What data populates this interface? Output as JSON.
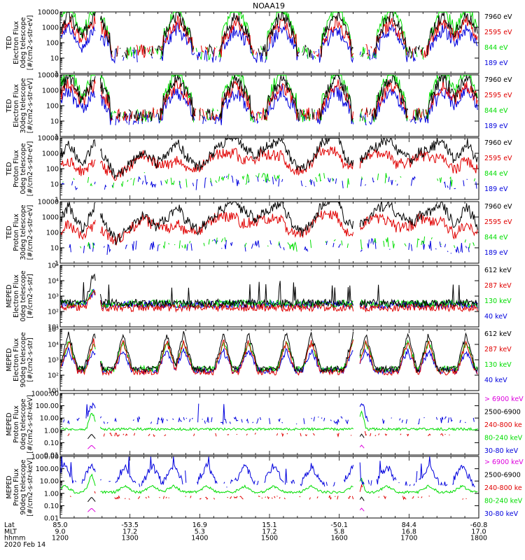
{
  "title": "NOAA19",
  "colors": {
    "black": "#000000",
    "red": "#e00000",
    "green": "#00dd00",
    "blue": "#0000dd",
    "magenta": "#dd00dd"
  },
  "chart_data": [
    {
      "type": "line",
      "id": "ted-e-0",
      "ylabel": [
        "TED",
        "Electron Flux",
        "0deg telescope",
        "[#/cm2-s-str-eV]"
      ],
      "yticks": [
        "10000",
        "1000",
        "100",
        "10",
        "1"
      ],
      "ylog": [
        1,
        10000
      ],
      "legend": [
        {
          "label": "7960 eV",
          "color": "black"
        },
        {
          "label": "2595 eV",
          "color": "red"
        },
        {
          "label": "844 eV",
          "color": "green"
        },
        {
          "label": "189 eV",
          "color": "blue"
        }
      ],
      "profile": "ted_e0"
    },
    {
      "type": "line",
      "id": "ted-e-30",
      "ylabel": [
        "TED",
        "Electron Flux",
        "30deg telescope",
        "[#/cm2-s-str-eV]"
      ],
      "yticks": [
        "10000",
        "1000",
        "100",
        "10",
        "1"
      ],
      "ylog": [
        1,
        10000
      ],
      "legend": [
        {
          "label": "7960 eV",
          "color": "black"
        },
        {
          "label": "2595 eV",
          "color": "red"
        },
        {
          "label": "844 eV",
          "color": "green"
        },
        {
          "label": "189 eV",
          "color": "blue"
        }
      ],
      "profile": "ted_e30"
    },
    {
      "type": "line",
      "id": "ted-p-0",
      "ylabel": [
        "TED",
        "Proton Flux",
        "0deg telescope",
        "[#/cm2-s-str-eV]"
      ],
      "yticks": [
        "10000",
        "1000",
        "100",
        "10",
        "1"
      ],
      "ylog": [
        1,
        10000
      ],
      "legend": [
        {
          "label": "7960 eV",
          "color": "black"
        },
        {
          "label": "2595 eV",
          "color": "red"
        },
        {
          "label": "844 eV",
          "color": "green"
        },
        {
          "label": "189 eV",
          "color": "blue"
        }
      ],
      "profile": "ted_p0"
    },
    {
      "type": "line",
      "id": "ted-p-30",
      "ylabel": [
        "TED",
        "Proton Flux",
        "30deg telescope",
        "[#/cm2-s-str-eV]"
      ],
      "yticks": [
        "10000",
        "1000",
        "100",
        "10",
        "1"
      ],
      "ylog": [
        1,
        10000
      ],
      "legend": [
        {
          "label": "7960 eV",
          "color": "black"
        },
        {
          "label": "2595 eV",
          "color": "red"
        },
        {
          "label": "844 eV",
          "color": "green"
        },
        {
          "label": "189 eV",
          "color": "blue"
        }
      ],
      "profile": "ted_p30"
    },
    {
      "type": "line",
      "id": "meped-e-0",
      "ylabel": [
        "MEPED",
        "Electron Flux",
        "0deg telescope",
        "[#/cm2-s-str]"
      ],
      "yticks": [
        "10⁵",
        "10⁴",
        "10³",
        "10²",
        "10¹"
      ],
      "ylog": [
        10,
        100000
      ],
      "legend": [
        {
          "label": "612 keV",
          "color": "black"
        },
        {
          "label": "287 keV",
          "color": "red"
        },
        {
          "label": "130 keV",
          "color": "green"
        },
        {
          "label": "40 keV",
          "color": "blue"
        }
      ],
      "profile": "meped_e0"
    },
    {
      "type": "line",
      "id": "meped-e-90",
      "ylabel": [
        "MEPED",
        "Electron Flux",
        "90deg telescope",
        "[#/cm2-s-str]"
      ],
      "yticks": [
        "10⁵",
        "10⁴",
        "10³",
        "10²",
        "10¹"
      ],
      "ylog": [
        10,
        100000
      ],
      "legend": [
        {
          "label": "612 keV",
          "color": "black"
        },
        {
          "label": "287 keV",
          "color": "red"
        },
        {
          "label": "130 keV",
          "color": "green"
        },
        {
          "label": "40 keV",
          "color": "blue"
        }
      ],
      "profile": "meped_e90"
    },
    {
      "type": "line",
      "id": "meped-p-0",
      "ylabel": [
        "MEPED",
        "Proton Flux",
        "0deg telescope",
        "[#/cm2-s-str-keV]"
      ],
      "yticks": [
        "1000.00",
        "100.00",
        "10.00",
        "1.00",
        "0.10",
        "0.01"
      ],
      "ylog": [
        0.01,
        1000
      ],
      "legend": [
        {
          "label": "> 6900 keV",
          "color": "magenta"
        },
        {
          "label": "2500-6900",
          "color": "black"
        },
        {
          "label": "240-800 ke",
          "color": "red"
        },
        {
          "label": "80-240 keV",
          "color": "green"
        },
        {
          "label": "30-80 keV",
          "color": "blue"
        }
      ],
      "profile": "meped_p0"
    },
    {
      "type": "line",
      "id": "meped-p-90",
      "ylabel": [
        "MEPED",
        "Proton Flux",
        "90deg telescope",
        "[#/cm2-s-str-keV]"
      ],
      "yticks": [
        "1000.00",
        "100.00",
        "10.00",
        "1.00",
        "0.10",
        "0.01"
      ],
      "ylog": [
        0.01,
        1000
      ],
      "legend": [
        {
          "label": "> 6900 keV",
          "color": "magenta"
        },
        {
          "label": "2500-6900",
          "color": "black"
        },
        {
          "label": "240-800 ke",
          "color": "red"
        },
        {
          "label": "80-240 keV",
          "color": "green"
        },
        {
          "label": "30-80 keV",
          "color": "blue"
        }
      ],
      "profile": "meped_p90"
    }
  ],
  "xaxis": {
    "row_labels": [
      "Lat",
      "MLT",
      "hhmm"
    ],
    "date": "2020 Feb 14",
    "ticks": [
      {
        "lat": "85.0",
        "mlt": "9.0",
        "hhmm": "1200"
      },
      {
        "lat": "-53.5",
        "mlt": "17.2",
        "hhmm": "1300"
      },
      {
        "lat": "16.9",
        "mlt": "5.3",
        "hhmm": "1400"
      },
      {
        "lat": "15.1",
        "mlt": "17.2",
        "hhmm": "1500"
      },
      {
        "lat": "-50.1",
        "mlt": "5.8",
        "hhmm": "1600"
      },
      {
        "lat": "84.4",
        "mlt": "16.8",
        "hhmm": "1700"
      },
      {
        "lat": "-60.8",
        "mlt": "17.0",
        "hhmm": "1800"
      }
    ]
  }
}
